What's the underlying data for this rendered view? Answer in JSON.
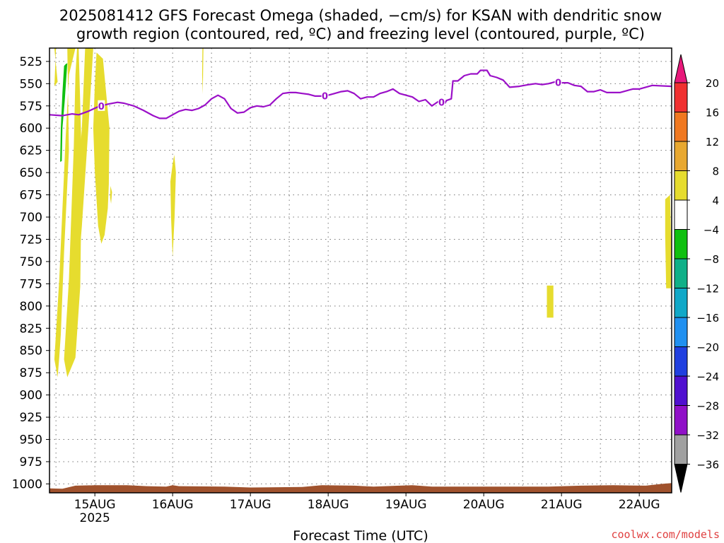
{
  "title_line1": "2025081412 GFS Forecast Omega (shaded, −cm/s) for KSAN with dendritic snow",
  "title_line2": "growth region (contoured, red, ºC) and freezing level (contoured, purple, ºC)",
  "credit": "coolwx.com/models",
  "credit_color": "#e04040",
  "chart_data": {
    "type": "heatmap",
    "title": "2025081412 GFS Forecast Omega (shaded, −cm/s) for KSAN with dendritic snow growth region (contoured, red, ºC) and freezing level (contoured, purple, ºC)",
    "xlabel": "Forecast Time (UTC)",
    "ylabel": "",
    "x_axis": {
      "range_hours": [
        -14,
        178
      ],
      "ticks": [
        {
          "label": "15AUG",
          "sublabel": "2025",
          "hour": 0
        },
        {
          "label": "16AUG",
          "sublabel": "",
          "hour": 24
        },
        {
          "label": "17AUG",
          "sublabel": "",
          "hour": 48
        },
        {
          "label": "18AUG",
          "sublabel": "",
          "hour": 72
        },
        {
          "label": "19AUG",
          "sublabel": "",
          "hour": 96
        },
        {
          "label": "20AUG",
          "sublabel": "",
          "hour": 120
        },
        {
          "label": "21AUG",
          "sublabel": "",
          "hour": 144
        },
        {
          "label": "22AUG",
          "sublabel": "",
          "hour": 168
        }
      ]
    },
    "y_axis": {
      "unit": "hPa",
      "range": [
        510,
        1010
      ],
      "inverted": true,
      "ticks": [
        525,
        550,
        575,
        600,
        625,
        650,
        675,
        700,
        725,
        750,
        775,
        800,
        825,
        850,
        875,
        900,
        925,
        950,
        975,
        1000
      ]
    },
    "grid": true,
    "colorbar": {
      "labels": [
        "20",
        "16",
        "12",
        "8",
        "4",
        "−4",
        "−8",
        "−12",
        "−16",
        "−20",
        "−24",
        "−28",
        "−32",
        "−36"
      ],
      "colors": [
        "#e8187a",
        "#f03030",
        "#f07820",
        "#e8a830",
        "#e6dc2e",
        "#ffffff",
        "#10c010",
        "#10b088",
        "#10a8c8",
        "#2090f0",
        "#2040e0",
        "#5010d0",
        "#9010c8",
        "#a0a0a0"
      ]
    },
    "freezing_level": {
      "color": "#9b10c8",
      "label": "0",
      "points": [
        [
          -14,
          585
        ],
        [
          -10,
          586
        ],
        [
          -7,
          584
        ],
        [
          -5,
          585
        ],
        [
          -2,
          581
        ],
        [
          1,
          576
        ],
        [
          4,
          573
        ],
        [
          7,
          571
        ],
        [
          9,
          572
        ],
        [
          12,
          575
        ],
        [
          15,
          580
        ],
        [
          18,
          586
        ],
        [
          20,
          589
        ],
        [
          22,
          589
        ],
        [
          24,
          585
        ],
        [
          26,
          581
        ],
        [
          28,
          579
        ],
        [
          30,
          580
        ],
        [
          32,
          578
        ],
        [
          34,
          574
        ],
        [
          36,
          567
        ],
        [
          38,
          563
        ],
        [
          40,
          567
        ],
        [
          42,
          578
        ],
        [
          44,
          583
        ],
        [
          46,
          582
        ],
        [
          48,
          577
        ],
        [
          50,
          575
        ],
        [
          52,
          576
        ],
        [
          54,
          574
        ],
        [
          56,
          567
        ],
        [
          58,
          561
        ],
        [
          60,
          560
        ],
        [
          62,
          560
        ],
        [
          64,
          561
        ],
        [
          66,
          562
        ],
        [
          68,
          564
        ],
        [
          70,
          564
        ],
        [
          72,
          563
        ],
        [
          74,
          561
        ],
        [
          76,
          559
        ],
        [
          78,
          558
        ],
        [
          80,
          561
        ],
        [
          82,
          567
        ],
        [
          84,
          565
        ],
        [
          86,
          565
        ],
        [
          88,
          561
        ],
        [
          90,
          559
        ],
        [
          92,
          556
        ],
        [
          94,
          561
        ],
        [
          96,
          563
        ],
        [
          98,
          565
        ],
        [
          100,
          570
        ],
        [
          102,
          568
        ],
        [
          104,
          575
        ],
        [
          106,
          570
        ],
        [
          108,
          572
        ],
        [
          108.5,
          569
        ],
        [
          110,
          567
        ],
        [
          110.5,
          547
        ],
        [
          112,
          547
        ],
        [
          114,
          541
        ],
        [
          116,
          539
        ],
        [
          118,
          539
        ],
        [
          119,
          535
        ],
        [
          121,
          535
        ],
        [
          122,
          541
        ],
        [
          124,
          543
        ],
        [
          126,
          546
        ],
        [
          128,
          554
        ],
        [
          131,
          553
        ],
        [
          134,
          551
        ],
        [
          136,
          550
        ],
        [
          138,
          551
        ],
        [
          140,
          550
        ],
        [
          142,
          548
        ],
        [
          144,
          549
        ],
        [
          146,
          549
        ],
        [
          148,
          552
        ],
        [
          150,
          553
        ],
        [
          152,
          559
        ],
        [
          154,
          559
        ],
        [
          156,
          557
        ],
        [
          158,
          560
        ],
        [
          162,
          560
        ],
        [
          164,
          558
        ],
        [
          166,
          556
        ],
        [
          168,
          556
        ],
        [
          172,
          552
        ],
        [
          178,
          553
        ]
      ],
      "labels_at_hours": [
        2,
        71,
        107,
        143
      ]
    },
    "omega_regions": [
      {
        "level": "4 to 8",
        "color": "#e6dc2e",
        "points": [
          [
            -12.5,
            510
          ],
          [
            -11.5,
            548
          ],
          [
            -12.5,
            553
          ],
          [
            -12,
            510
          ]
        ]
      },
      {
        "level": "4 to 8",
        "color": "#e6dc2e",
        "points": [
          [
            -8.5,
            510
          ],
          [
            -8,
            625
          ],
          [
            -9.5,
            740
          ],
          [
            -10.5,
            832
          ],
          [
            -11,
            858
          ],
          [
            -11.5,
            880
          ],
          [
            -12.5,
            860
          ],
          [
            -11,
            770
          ],
          [
            -9,
            610
          ],
          [
            -8,
            540
          ],
          [
            -6,
            510
          ],
          [
            -6,
            510
          ]
        ]
      },
      {
        "level": "4 to 8",
        "color": "#e6dc2e",
        "points": [
          [
            -5,
            510
          ],
          [
            -4,
            640
          ],
          [
            -4.5,
            778
          ],
          [
            -6,
            858
          ],
          [
            -8.5,
            880
          ],
          [
            -9.5,
            860
          ],
          [
            -8,
            770
          ],
          [
            -6.5,
            620
          ],
          [
            -6,
            540
          ],
          [
            -5.5,
            510
          ]
        ]
      },
      {
        "level": "4 to 8",
        "color": "#e6dc2e",
        "points": [
          [
            -3,
            510
          ],
          [
            -0.5,
            510
          ],
          [
            -2,
            600
          ],
          [
            -4,
            710
          ],
          [
            -6,
            800
          ],
          [
            -7,
            826
          ],
          [
            -8,
            800
          ],
          [
            -6,
            700
          ],
          [
            -4,
            600
          ]
        ]
      },
      {
        "level": "4 to 8",
        "color": "#e6dc2e",
        "points": [
          [
            0.5,
            515
          ],
          [
            2.5,
            522
          ],
          [
            4.5,
            600
          ],
          [
            4.3,
            663
          ],
          [
            4,
            690
          ],
          [
            3,
            720
          ],
          [
            2,
            730
          ],
          [
            1,
            710
          ],
          [
            0,
            650
          ],
          [
            -0.5,
            600
          ],
          [
            0,
            550
          ]
        ]
      },
      {
        "level": "4 to 8",
        "color": "#e6dc2e",
        "points": [
          [
            4.8,
            665
          ],
          [
            5.3,
            672
          ],
          [
            5,
            685
          ],
          [
            4.7,
            678
          ]
        ]
      },
      {
        "level": "4 to 8",
        "color": "#e6dc2e",
        "points": [
          [
            24.5,
            630
          ],
          [
            25,
            650
          ],
          [
            24.6,
            700
          ],
          [
            24,
            745
          ],
          [
            23.5,
            700
          ],
          [
            23.3,
            660
          ],
          [
            24,
            640
          ]
        ]
      },
      {
        "level": "4 to 8",
        "color": "#e6dc2e",
        "points": [
          [
            33.2,
            510
          ],
          [
            33.5,
            510
          ],
          [
            33.3,
            562
          ],
          [
            33.1,
            540
          ]
        ]
      },
      {
        "level": "4 to 8",
        "color": "#e6dc2e",
        "points": [
          [
            139.5,
            777
          ],
          [
            141.5,
            777
          ],
          [
            141.5,
            813
          ],
          [
            139.5,
            813
          ]
        ]
      },
      {
        "level": "4 to 8",
        "color": "#e6dc2e",
        "points": [
          [
            176,
            680
          ],
          [
            177.5,
            675
          ],
          [
            177.8,
            725
          ],
          [
            177.8,
            780
          ],
          [
            176.3,
            780
          ],
          [
            176,
            720
          ]
        ]
      },
      {
        "level": "-4 to -8",
        "color": "#10c010",
        "points": [
          [
            -9,
            528
          ],
          [
            -8.5,
            527
          ],
          [
            -9.3,
            570
          ],
          [
            -10,
            600
          ],
          [
            -10.2,
            637
          ],
          [
            -10.7,
            638
          ],
          [
            -10.5,
            600
          ],
          [
            -10,
            560
          ],
          [
            -9.5,
            530
          ]
        ]
      }
    ],
    "surface_terrain": {
      "color": "#a0522d",
      "points": [
        [
          -14,
          1005
        ],
        [
          -10,
          1005.5
        ],
        [
          -6,
          1002
        ],
        [
          0,
          1001.5
        ],
        [
          10,
          1001.5
        ],
        [
          16,
          1002.5
        ],
        [
          22,
          1003
        ],
        [
          24,
          1001.5
        ],
        [
          26,
          1002.5
        ],
        [
          40,
          1003
        ],
        [
          48,
          1004
        ],
        [
          64,
          1003.5
        ],
        [
          70,
          1001.5
        ],
        [
          80,
          1002
        ],
        [
          86,
          1003
        ],
        [
          94,
          1002
        ],
        [
          98,
          1001.5
        ],
        [
          104,
          1003
        ],
        [
          116,
          1003
        ],
        [
          130,
          1003
        ],
        [
          140,
          1003
        ],
        [
          150,
          1002
        ],
        [
          160,
          1001.5
        ],
        [
          170,
          1002
        ],
        [
          175,
          1000
        ],
        [
          178,
          999
        ]
      ]
    }
  }
}
